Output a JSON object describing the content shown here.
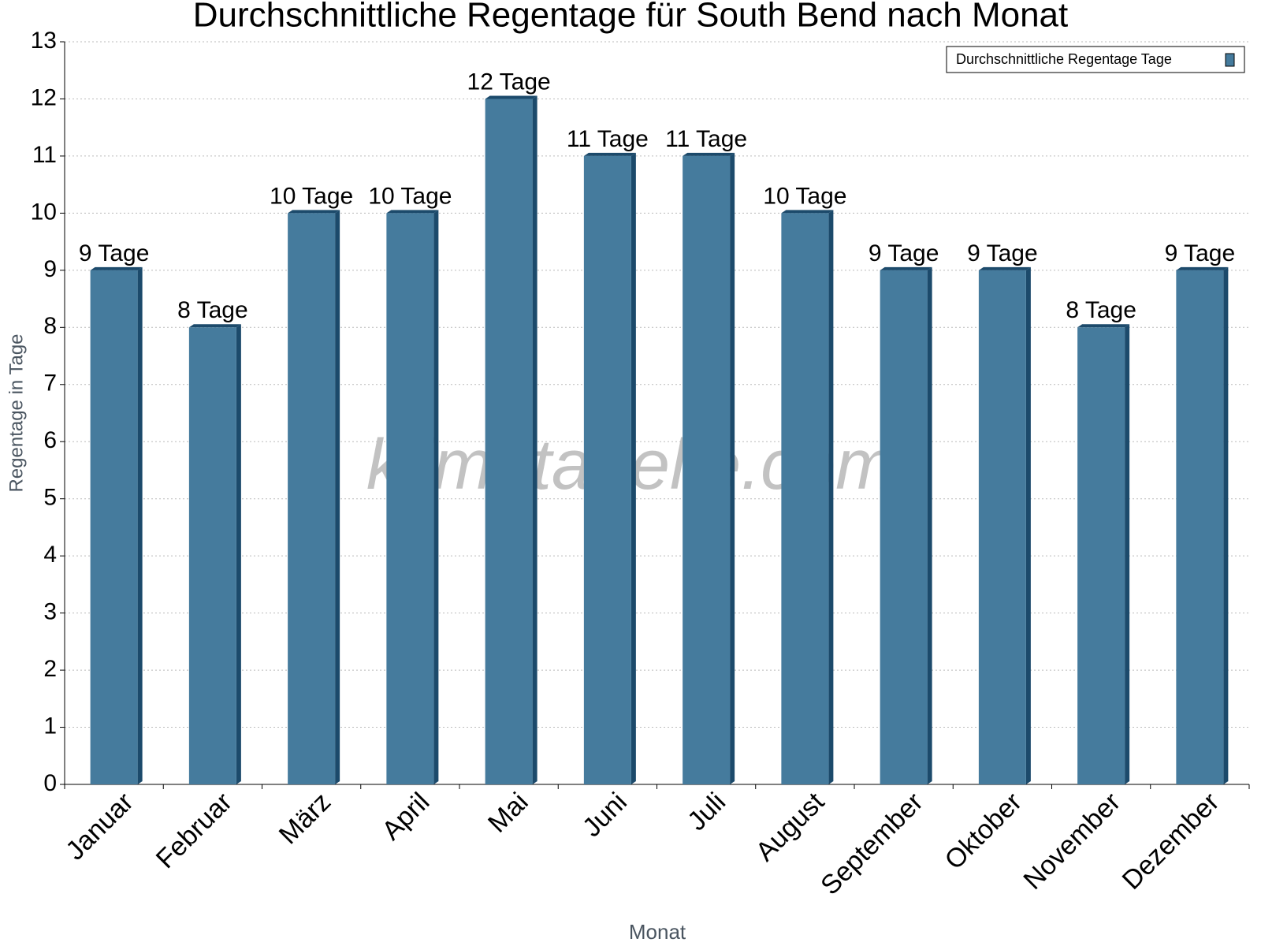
{
  "chart_data": {
    "type": "bar",
    "title": "Durchschnittliche Regentage für South Bend nach Monat",
    "x_label": "Monat",
    "y_label": "Regentage in Tage",
    "watermark": "klimatabelle.com",
    "categories": [
      "Januar",
      "Februar",
      "März",
      "April",
      "Mai",
      "Juni",
      "Juli",
      "August",
      "September",
      "Oktober",
      "November",
      "Dezember"
    ],
    "series": [
      {
        "name": "Durchschnittliche Regentage Tage",
        "color": "#457b9d",
        "values": [
          9,
          8,
          10,
          10,
          12,
          11,
          11,
          10,
          9,
          9,
          8,
          9
        ],
        "value_labels": [
          "9 Tage",
          "8 Tage",
          "10 Tage",
          "10 Tage",
          "12 Tage",
          "11 Tage",
          "11 Tage",
          "10 Tage",
          "9 Tage",
          "9 Tage",
          "8 Tage",
          "9 Tage"
        ]
      }
    ],
    "ylim": [
      0,
      13
    ],
    "yticks": [
      0,
      1,
      2,
      3,
      4,
      5,
      6,
      7,
      8,
      9,
      10,
      11,
      12,
      13
    ],
    "grid": true,
    "legend": "upper right"
  }
}
